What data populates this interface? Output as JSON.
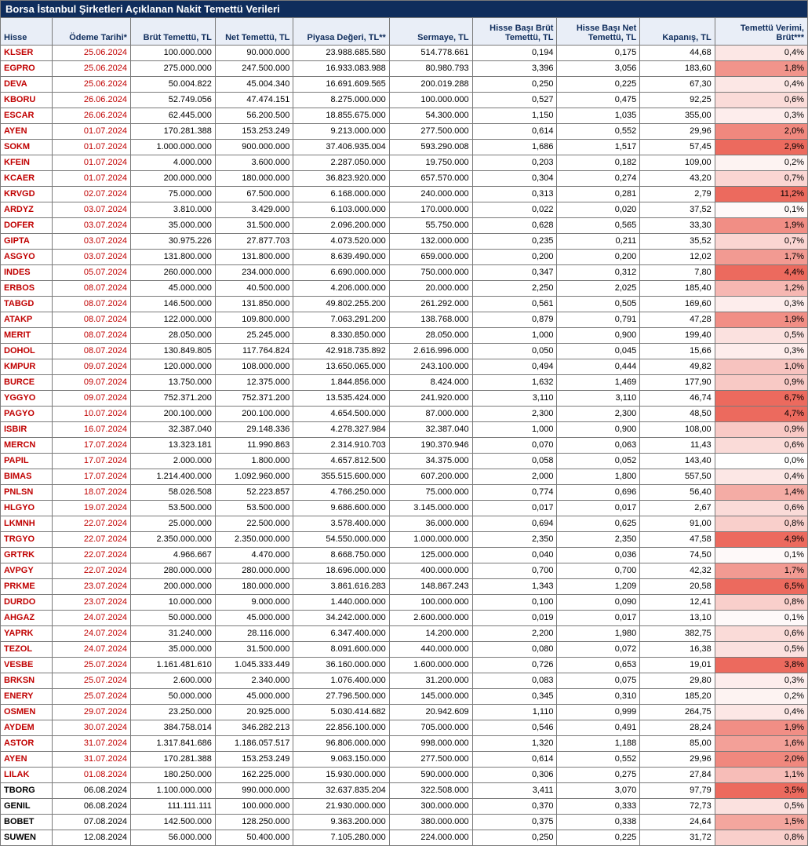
{
  "title": "Borsa İstanbul Şirketleri Açıklanan Nakit Temettü Verileri",
  "columns": [
    "Hisse",
    "Ödeme Tarihi*",
    "Brüt Temettü, TL",
    "Net Temettü, TL",
    "Piyasa Değeri, TL**",
    "Sermaye, TL",
    "Hisse Başı Brüt Temettü, TL",
    "Hisse Başı Net Temettü, TL",
    "Kapanış, TL",
    "Temettü Verimi, Brüt***"
  ],
  "heat": {
    "min": 0.0,
    "max": 11.2,
    "low_color": "#ffffff",
    "high_color": "#ec6a5e",
    "cap": 2.5
  },
  "rows": [
    {
      "sym": "KLSER",
      "date": "25.06.2024",
      "red": true,
      "brut": "100.000.000",
      "net": "90.000.000",
      "mcap": "23.988.685.580",
      "serm": "514.778.661",
      "hbb": "0,194",
      "hbn": "0,175",
      "kap": "44,68",
      "yld": "0,4%",
      "y": 0.4
    },
    {
      "sym": "EGPRO",
      "date": "25.06.2024",
      "red": true,
      "brut": "275.000.000",
      "net": "247.500.000",
      "mcap": "16.933.083.988",
      "serm": "80.980.793",
      "hbb": "3,396",
      "hbn": "3,056",
      "kap": "183,60",
      "yld": "1,8%",
      "y": 1.8
    },
    {
      "sym": "DEVA",
      "date": "25.06.2024",
      "red": true,
      "brut": "50.004.822",
      "net": "45.004.340",
      "mcap": "16.691.609.565",
      "serm": "200.019.288",
      "hbb": "0,250",
      "hbn": "0,225",
      "kap": "67,30",
      "yld": "0,4%",
      "y": 0.4
    },
    {
      "sym": "KBORU",
      "date": "26.06.2024",
      "red": true,
      "brut": "52.749.056",
      "net": "47.474.151",
      "mcap": "8.275.000.000",
      "serm": "100.000.000",
      "hbb": "0,527",
      "hbn": "0,475",
      "kap": "92,25",
      "yld": "0,6%",
      "y": 0.6
    },
    {
      "sym": "ESCAR",
      "date": "26.06.2024",
      "red": true,
      "brut": "62.445.000",
      "net": "56.200.500",
      "mcap": "18.855.675.000",
      "serm": "54.300.000",
      "hbb": "1,150",
      "hbn": "1,035",
      "kap": "355,00",
      "yld": "0,3%",
      "y": 0.3
    },
    {
      "sym": "AYEN",
      "date": "01.07.2024",
      "red": true,
      "brut": "170.281.388",
      "net": "153.253.249",
      "mcap": "9.213.000.000",
      "serm": "277.500.000",
      "hbb": "0,614",
      "hbn": "0,552",
      "kap": "29,96",
      "yld": "2,0%",
      "y": 2.0
    },
    {
      "sym": "SOKM",
      "date": "01.07.2024",
      "red": true,
      "brut": "1.000.000.000",
      "net": "900.000.000",
      "mcap": "37.406.935.004",
      "serm": "593.290.008",
      "hbb": "1,686",
      "hbn": "1,517",
      "kap": "57,45",
      "yld": "2,9%",
      "y": 2.9
    },
    {
      "sym": "KFEIN",
      "date": "01.07.2024",
      "red": true,
      "brut": "4.000.000",
      "net": "3.600.000",
      "mcap": "2.287.050.000",
      "serm": "19.750.000",
      "hbb": "0,203",
      "hbn": "0,182",
      "kap": "109,00",
      "yld": "0,2%",
      "y": 0.2
    },
    {
      "sym": "KCAER",
      "date": "01.07.2024",
      "red": true,
      "brut": "200.000.000",
      "net": "180.000.000",
      "mcap": "36.823.920.000",
      "serm": "657.570.000",
      "hbb": "0,304",
      "hbn": "0,274",
      "kap": "43,20",
      "yld": "0,7%",
      "y": 0.7
    },
    {
      "sym": "KRVGD",
      "date": "02.07.2024",
      "red": true,
      "brut": "75.000.000",
      "net": "67.500.000",
      "mcap": "6.168.000.000",
      "serm": "240.000.000",
      "hbb": "0,313",
      "hbn": "0,281",
      "kap": "2,79",
      "yld": "11,2%",
      "y": 11.2
    },
    {
      "sym": "ARDYZ",
      "date": "03.07.2024",
      "red": true,
      "brut": "3.810.000",
      "net": "3.429.000",
      "mcap": "6.103.000.000",
      "serm": "170.000.000",
      "hbb": "0,022",
      "hbn": "0,020",
      "kap": "37,52",
      "yld": "0,1%",
      "y": 0.1
    },
    {
      "sym": "DOFER",
      "date": "03.07.2024",
      "red": true,
      "brut": "35.000.000",
      "net": "31.500.000",
      "mcap": "2.096.200.000",
      "serm": "55.750.000",
      "hbb": "0,628",
      "hbn": "0,565",
      "kap": "33,30",
      "yld": "1,9%",
      "y": 1.9
    },
    {
      "sym": "GIPTA",
      "date": "03.07.2024",
      "red": true,
      "brut": "30.975.226",
      "net": "27.877.703",
      "mcap": "4.073.520.000",
      "serm": "132.000.000",
      "hbb": "0,235",
      "hbn": "0,211",
      "kap": "35,52",
      "yld": "0,7%",
      "y": 0.7
    },
    {
      "sym": "ASGYO",
      "date": "03.07.2024",
      "red": true,
      "brut": "131.800.000",
      "net": "131.800.000",
      "mcap": "8.639.490.000",
      "serm": "659.000.000",
      "hbb": "0,200",
      "hbn": "0,200",
      "kap": "12,02",
      "yld": "1,7%",
      "y": 1.7
    },
    {
      "sym": "INDES",
      "date": "05.07.2024",
      "red": true,
      "brut": "260.000.000",
      "net": "234.000.000",
      "mcap": "6.690.000.000",
      "serm": "750.000.000",
      "hbb": "0,347",
      "hbn": "0,312",
      "kap": "7,80",
      "yld": "4,4%",
      "y": 4.4
    },
    {
      "sym": "ERBOS",
      "date": "08.07.2024",
      "red": true,
      "brut": "45.000.000",
      "net": "40.500.000",
      "mcap": "4.206.000.000",
      "serm": "20.000.000",
      "hbb": "2,250",
      "hbn": "2,025",
      "kap": "185,40",
      "yld": "1,2%",
      "y": 1.2
    },
    {
      "sym": "TABGD",
      "date": "08.07.2024",
      "red": true,
      "brut": "146.500.000",
      "net": "131.850.000",
      "mcap": "49.802.255.200",
      "serm": "261.292.000",
      "hbb": "0,561",
      "hbn": "0,505",
      "kap": "169,60",
      "yld": "0,3%",
      "y": 0.3
    },
    {
      "sym": "ATAKP",
      "date": "08.07.2024",
      "red": true,
      "brut": "122.000.000",
      "net": "109.800.000",
      "mcap": "7.063.291.200",
      "serm": "138.768.000",
      "hbb": "0,879",
      "hbn": "0,791",
      "kap": "47,28",
      "yld": "1,9%",
      "y": 1.9
    },
    {
      "sym": "MERIT",
      "date": "08.07.2024",
      "red": true,
      "brut": "28.050.000",
      "net": "25.245.000",
      "mcap": "8.330.850.000",
      "serm": "28.050.000",
      "hbb": "1,000",
      "hbn": "0,900",
      "kap": "199,40",
      "yld": "0,5%",
      "y": 0.5
    },
    {
      "sym": "DOHOL",
      "date": "08.07.2024",
      "red": true,
      "brut": "130.849.805",
      "net": "117.764.824",
      "mcap": "42.918.735.892",
      "serm": "2.616.996.000",
      "hbb": "0,050",
      "hbn": "0,045",
      "kap": "15,66",
      "yld": "0,3%",
      "y": 0.3
    },
    {
      "sym": "KMPUR",
      "date": "09.07.2024",
      "red": true,
      "brut": "120.000.000",
      "net": "108.000.000",
      "mcap": "13.650.065.000",
      "serm": "243.100.000",
      "hbb": "0,494",
      "hbn": "0,444",
      "kap": "49,82",
      "yld": "1,0%",
      "y": 1.0
    },
    {
      "sym": "BURCE",
      "date": "09.07.2024",
      "red": true,
      "brut": "13.750.000",
      "net": "12.375.000",
      "mcap": "1.844.856.000",
      "serm": "8.424.000",
      "hbb": "1,632",
      "hbn": "1,469",
      "kap": "177,90",
      "yld": "0,9%",
      "y": 0.9
    },
    {
      "sym": "YGGYO",
      "date": "09.07.2024",
      "red": true,
      "brut": "752.371.200",
      "net": "752.371.200",
      "mcap": "13.535.424.000",
      "serm": "241.920.000",
      "hbb": "3,110",
      "hbn": "3,110",
      "kap": "46,74",
      "yld": "6,7%",
      "y": 6.7
    },
    {
      "sym": "PAGYO",
      "date": "10.07.2024",
      "red": true,
      "brut": "200.100.000",
      "net": "200.100.000",
      "mcap": "4.654.500.000",
      "serm": "87.000.000",
      "hbb": "2,300",
      "hbn": "2,300",
      "kap": "48,50",
      "yld": "4,7%",
      "y": 4.7
    },
    {
      "sym": "ISBIR",
      "date": "16.07.2024",
      "red": true,
      "brut": "32.387.040",
      "net": "29.148.336",
      "mcap": "4.278.327.984",
      "serm": "32.387.040",
      "hbb": "1,000",
      "hbn": "0,900",
      "kap": "108,00",
      "yld": "0,9%",
      "y": 0.9
    },
    {
      "sym": "MERCN",
      "date": "17.07.2024",
      "red": true,
      "brut": "13.323.181",
      "net": "11.990.863",
      "mcap": "2.314.910.703",
      "serm": "190.370.946",
      "hbb": "0,070",
      "hbn": "0,063",
      "kap": "11,43",
      "yld": "0,6%",
      "y": 0.6
    },
    {
      "sym": "PAPIL",
      "date": "17.07.2024",
      "red": true,
      "brut": "2.000.000",
      "net": "1.800.000",
      "mcap": "4.657.812.500",
      "serm": "34.375.000",
      "hbb": "0,058",
      "hbn": "0,052",
      "kap": "143,40",
      "yld": "0,0%",
      "y": 0.0
    },
    {
      "sym": "BIMAS",
      "date": "17.07.2024",
      "red": true,
      "brut": "1.214.400.000",
      "net": "1.092.960.000",
      "mcap": "355.515.600.000",
      "serm": "607.200.000",
      "hbb": "2,000",
      "hbn": "1,800",
      "kap": "557,50",
      "yld": "0,4%",
      "y": 0.4
    },
    {
      "sym": "PNLSN",
      "date": "18.07.2024",
      "red": true,
      "brut": "58.026.508",
      "net": "52.223.857",
      "mcap": "4.766.250.000",
      "serm": "75.000.000",
      "hbb": "0,774",
      "hbn": "0,696",
      "kap": "56,40",
      "yld": "1,4%",
      "y": 1.4
    },
    {
      "sym": "HLGYO",
      "date": "19.07.2024",
      "red": true,
      "brut": "53.500.000",
      "net": "53.500.000",
      "mcap": "9.686.600.000",
      "serm": "3.145.000.000",
      "hbb": "0,017",
      "hbn": "0,017",
      "kap": "2,67",
      "yld": "0,6%",
      "y": 0.6
    },
    {
      "sym": "LKMNH",
      "date": "22.07.2024",
      "red": true,
      "brut": "25.000.000",
      "net": "22.500.000",
      "mcap": "3.578.400.000",
      "serm": "36.000.000",
      "hbb": "0,694",
      "hbn": "0,625",
      "kap": "91,00",
      "yld": "0,8%",
      "y": 0.8
    },
    {
      "sym": "TRGYO",
      "date": "22.07.2024",
      "red": true,
      "brut": "2.350.000.000",
      "net": "2.350.000.000",
      "mcap": "54.550.000.000",
      "serm": "1.000.000.000",
      "hbb": "2,350",
      "hbn": "2,350",
      "kap": "47,58",
      "yld": "4,9%",
      "y": 4.9
    },
    {
      "sym": "GRTRK",
      "date": "22.07.2024",
      "red": true,
      "brut": "4.966.667",
      "net": "4.470.000",
      "mcap": "8.668.750.000",
      "serm": "125.000.000",
      "hbb": "0,040",
      "hbn": "0,036",
      "kap": "74,50",
      "yld": "0,1%",
      "y": 0.1
    },
    {
      "sym": "AVPGY",
      "date": "22.07.2024",
      "red": true,
      "brut": "280.000.000",
      "net": "280.000.000",
      "mcap": "18.696.000.000",
      "serm": "400.000.000",
      "hbb": "0,700",
      "hbn": "0,700",
      "kap": "42,32",
      "yld": "1,7%",
      "y": 1.7
    },
    {
      "sym": "PRKME",
      "date": "23.07.2024",
      "red": true,
      "brut": "200.000.000",
      "net": "180.000.000",
      "mcap": "3.861.616.283",
      "serm": "148.867.243",
      "hbb": "1,343",
      "hbn": "1,209",
      "kap": "20,58",
      "yld": "6,5%",
      "y": 6.5
    },
    {
      "sym": "DURDO",
      "date": "23.07.2024",
      "red": true,
      "brut": "10.000.000",
      "net": "9.000.000",
      "mcap": "1.440.000.000",
      "serm": "100.000.000",
      "hbb": "0,100",
      "hbn": "0,090",
      "kap": "12,41",
      "yld": "0,8%",
      "y": 0.8
    },
    {
      "sym": "AHGAZ",
      "date": "24.07.2024",
      "red": true,
      "brut": "50.000.000",
      "net": "45.000.000",
      "mcap": "34.242.000.000",
      "serm": "2.600.000.000",
      "hbb": "0,019",
      "hbn": "0,017",
      "kap": "13,10",
      "yld": "0,1%",
      "y": 0.1
    },
    {
      "sym": "YAPRK",
      "date": "24.07.2024",
      "red": true,
      "brut": "31.240.000",
      "net": "28.116.000",
      "mcap": "6.347.400.000",
      "serm": "14.200.000",
      "hbb": "2,200",
      "hbn": "1,980",
      "kap": "382,75",
      "yld": "0,6%",
      "y": 0.6
    },
    {
      "sym": "TEZOL",
      "date": "24.07.2024",
      "red": true,
      "brut": "35.000.000",
      "net": "31.500.000",
      "mcap": "8.091.600.000",
      "serm": "440.000.000",
      "hbb": "0,080",
      "hbn": "0,072",
      "kap": "16,38",
      "yld": "0,5%",
      "y": 0.5
    },
    {
      "sym": "VESBE",
      "date": "25.07.2024",
      "red": true,
      "brut": "1.161.481.610",
      "net": "1.045.333.449",
      "mcap": "36.160.000.000",
      "serm": "1.600.000.000",
      "hbb": "0,726",
      "hbn": "0,653",
      "kap": "19,01",
      "yld": "3,8%",
      "y": 3.8
    },
    {
      "sym": "BRKSN",
      "date": "25.07.2024",
      "red": true,
      "brut": "2.600.000",
      "net": "2.340.000",
      "mcap": "1.076.400.000",
      "serm": "31.200.000",
      "hbb": "0,083",
      "hbn": "0,075",
      "kap": "29,80",
      "yld": "0,3%",
      "y": 0.3
    },
    {
      "sym": "ENERY",
      "date": "25.07.2024",
      "red": true,
      "brut": "50.000.000",
      "net": "45.000.000",
      "mcap": "27.796.500.000",
      "serm": "145.000.000",
      "hbb": "0,345",
      "hbn": "0,310",
      "kap": "185,20",
      "yld": "0,2%",
      "y": 0.2
    },
    {
      "sym": "OSMEN",
      "date": "29.07.2024",
      "red": true,
      "brut": "23.250.000",
      "net": "20.925.000",
      "mcap": "5.030.414.682",
      "serm": "20.942.609",
      "hbb": "1,110",
      "hbn": "0,999",
      "kap": "264,75",
      "yld": "0,4%",
      "y": 0.4
    },
    {
      "sym": "AYDEM",
      "date": "30.07.2024",
      "red": true,
      "brut": "384.758.014",
      "net": "346.282.213",
      "mcap": "22.856.100.000",
      "serm": "705.000.000",
      "hbb": "0,546",
      "hbn": "0,491",
      "kap": "28,24",
      "yld": "1,9%",
      "y": 1.9
    },
    {
      "sym": "ASTOR",
      "date": "31.07.2024",
      "red": true,
      "brut": "1.317.841.686",
      "net": "1.186.057.517",
      "mcap": "96.806.000.000",
      "serm": "998.000.000",
      "hbb": "1,320",
      "hbn": "1,188",
      "kap": "85,00",
      "yld": "1,6%",
      "y": 1.6
    },
    {
      "sym": "AYEN",
      "date": "31.07.2024",
      "red": true,
      "brut": "170.281.388",
      "net": "153.253.249",
      "mcap": "9.063.150.000",
      "serm": "277.500.000",
      "hbb": "0,614",
      "hbn": "0,552",
      "kap": "29,96",
      "yld": "2,0%",
      "y": 2.0
    },
    {
      "sym": "LILAK",
      "date": "01.08.2024",
      "red": true,
      "brut": "180.250.000",
      "net": "162.225.000",
      "mcap": "15.930.000.000",
      "serm": "590.000.000",
      "hbb": "0,306",
      "hbn": "0,275",
      "kap": "27,84",
      "yld": "1,1%",
      "y": 1.1
    },
    {
      "sym": "TBORG",
      "date": "06.08.2024",
      "red": false,
      "brut": "1.100.000.000",
      "net": "990.000.000",
      "mcap": "32.637.835.204",
      "serm": "322.508.000",
      "hbb": "3,411",
      "hbn": "3,070",
      "kap": "97,79",
      "yld": "3,5%",
      "y": 3.5
    },
    {
      "sym": "GENIL",
      "date": "06.08.2024",
      "red": false,
      "brut": "111.111.111",
      "net": "100.000.000",
      "mcap": "21.930.000.000",
      "serm": "300.000.000",
      "hbb": "0,370",
      "hbn": "0,333",
      "kap": "72,73",
      "yld": "0,5%",
      "y": 0.5
    },
    {
      "sym": "BOBET",
      "date": "07.08.2024",
      "red": false,
      "brut": "142.500.000",
      "net": "128.250.000",
      "mcap": "9.363.200.000",
      "serm": "380.000.000",
      "hbb": "0,375",
      "hbn": "0,338",
      "kap": "24,64",
      "yld": "1,5%",
      "y": 1.5
    },
    {
      "sym": "SUWEN",
      "date": "12.08.2024",
      "red": false,
      "brut": "56.000.000",
      "net": "50.400.000",
      "mcap": "7.105.280.000",
      "serm": "224.000.000",
      "hbb": "0,250",
      "hbn": "0,225",
      "kap": "31,72",
      "yld": "0,8%",
      "y": 0.8
    }
  ]
}
